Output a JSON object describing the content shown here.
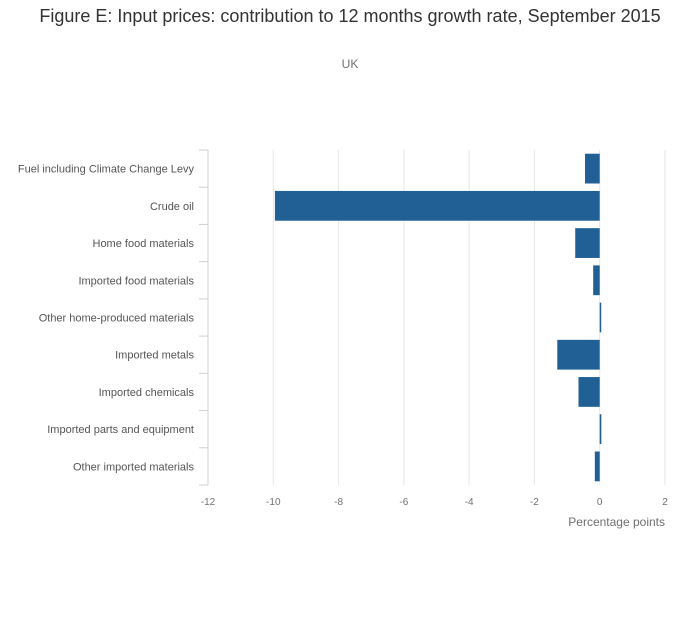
{
  "chart_data": {
    "type": "bar",
    "orientation": "horizontal",
    "title": "Figure E: Input prices: contribution to 12 months growth rate, September 2015",
    "subtitle": "UK",
    "xlabel": "Percentage points",
    "ylabel": "",
    "xlim": [
      -12,
      2
    ],
    "xticks": [
      "-12",
      "-10",
      "-8",
      "-6",
      "-4",
      "-2",
      "0",
      "2"
    ],
    "grid": true,
    "bar_color": "#206095",
    "categories": [
      "Fuel including Climate Change Levy",
      "Crude oil",
      "Home food materials",
      "Imported food materials",
      "Other home-produced materials",
      "Imported metals",
      "Imported chemicals",
      "Imported parts and equipment",
      "Other imported materials"
    ],
    "values": [
      -0.45,
      -9.95,
      -0.75,
      -0.2,
      0.02,
      -1.3,
      -0.65,
      0.05,
      -0.15
    ]
  }
}
